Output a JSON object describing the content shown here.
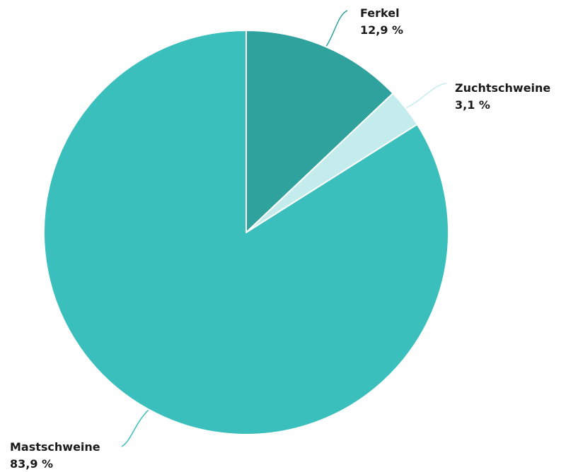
{
  "chart_data": {
    "type": "pie",
    "title": "",
    "slices": [
      {
        "name": "Ferkel",
        "value": 12.9,
        "value_label": "12,9 %",
        "color": "#2fa29d"
      },
      {
        "name": "Zuchtschweine",
        "value": 3.1,
        "value_label": "3,1 %",
        "color": "#c5ecec"
      },
      {
        "name": "Mastschweine",
        "value": 83.9,
        "value_label": "83,9 %",
        "color": "#3abfbc"
      }
    ],
    "start_angle": "12 o'clock",
    "direction": "clockwise",
    "legend": "none"
  }
}
